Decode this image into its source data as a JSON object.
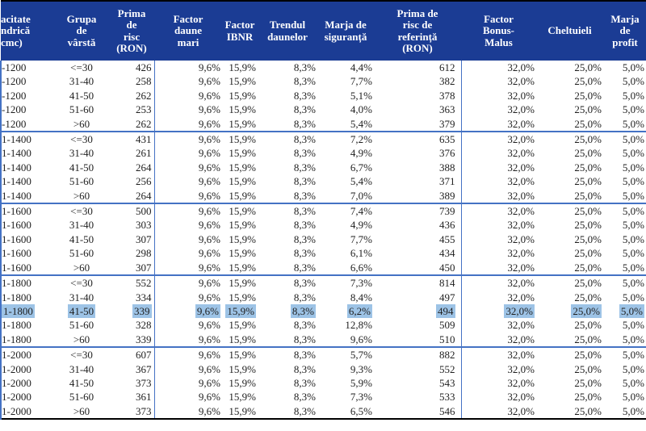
{
  "colors": {
    "header_bg": "#1b3c94",
    "header_text": "#ffffff",
    "grid_blue": "#4472c4",
    "line_black": "#000000",
    "highlight": "#9dc3e6",
    "data_text": "#1f1f1f"
  },
  "table": {
    "headers": [
      {
        "id": "capacity",
        "lines": [
          "acitate",
          "ndrică",
          "cmc)"
        ]
      },
      {
        "id": "age-group",
        "lines": [
          "Grupa",
          "de",
          "vârstă"
        ]
      },
      {
        "id": "risk-premium",
        "lines": [
          "Prima",
          "de",
          "risc",
          "(RON)"
        ]
      },
      {
        "id": "large-claims-factor",
        "lines": [
          "Factor",
          "daune",
          "mari"
        ]
      },
      {
        "id": "ibnr-factor",
        "lines": [
          "Factor",
          "IBNR"
        ]
      },
      {
        "id": "claims-trend",
        "lines": [
          "Trendul",
          "daunelor"
        ]
      },
      {
        "id": "safety-margin",
        "lines": [
          "Marja de",
          "siguranță"
        ]
      },
      {
        "id": "reference-risk-premium",
        "lines": [
          "Prima de",
          "risc de",
          "referință",
          "(RON)"
        ]
      },
      {
        "id": "bonus-malus-factor",
        "lines": [
          "Factor",
          "Bonus-",
          "Malus"
        ]
      },
      {
        "id": "expenses",
        "lines": [
          "Cheltuieli"
        ]
      },
      {
        "id": "profit-margin",
        "lines": [
          "Marja",
          "de",
          "profit"
        ]
      }
    ],
    "constants": {
      "large_claims_factor": "9,6%",
      "ibnr_factor": "15,9%",
      "claims_trend": "8,3%",
      "bonus_malus": "32,0%",
      "expenses": "25,0%",
      "profit_margin": "5,0%"
    },
    "groups": [
      {
        "capacity": "-1200",
        "rows": [
          {
            "age": "<=30",
            "risk_premium": "426",
            "safety_margin": "4,4%",
            "reference_premium": "612"
          },
          {
            "age": "31-40",
            "risk_premium": "258",
            "safety_margin": "7,7%",
            "reference_premium": "382"
          },
          {
            "age": "41-50",
            "risk_premium": "262",
            "safety_margin": "5,1%",
            "reference_premium": "378"
          },
          {
            "age": "51-60",
            "risk_premium": "253",
            "safety_margin": "4,0%",
            "reference_premium": "363"
          },
          {
            "age": ">60",
            "risk_premium": "262",
            "safety_margin": "5,4%",
            "reference_premium": "379"
          }
        ]
      },
      {
        "capacity": "1-1400",
        "rows": [
          {
            "age": "<=30",
            "risk_premium": "431",
            "safety_margin": "7,2%",
            "reference_premium": "635"
          },
          {
            "age": "31-40",
            "risk_premium": "261",
            "safety_margin": "4,9%",
            "reference_premium": "376"
          },
          {
            "age": "41-50",
            "risk_premium": "264",
            "safety_margin": "6,7%",
            "reference_premium": "388"
          },
          {
            "age": "51-60",
            "risk_premium": "256",
            "safety_margin": "5,4%",
            "reference_premium": "371"
          },
          {
            "age": ">60",
            "risk_premium": "264",
            "safety_margin": "7,0%",
            "reference_premium": "389"
          }
        ]
      },
      {
        "capacity": "1-1600",
        "rows": [
          {
            "age": "<=30",
            "risk_premium": "500",
            "safety_margin": "7,4%",
            "reference_premium": "739"
          },
          {
            "age": "31-40",
            "risk_premium": "303",
            "safety_margin": "4,9%",
            "reference_premium": "436"
          },
          {
            "age": "41-50",
            "risk_premium": "307",
            "safety_margin": "7,7%",
            "reference_premium": "455"
          },
          {
            "age": "51-60",
            "risk_premium": "298",
            "safety_margin": "6,1%",
            "reference_premium": "434"
          },
          {
            "age": ">60",
            "risk_premium": "307",
            "safety_margin": "6,6%",
            "reference_premium": "450"
          }
        ]
      },
      {
        "capacity": "1-1800",
        "rows": [
          {
            "age": "<=30",
            "risk_premium": "552",
            "safety_margin": "7,3%",
            "reference_premium": "814"
          },
          {
            "age": "31-40",
            "risk_premium": "334",
            "safety_margin": "8,4%",
            "reference_premium": "497"
          },
          {
            "age": "41-50",
            "risk_premium": "339",
            "safety_margin": "6,2%",
            "reference_premium": "494"
          },
          {
            "age": "51-60",
            "risk_premium": "328",
            "safety_margin": "12,8%",
            "reference_premium": "509"
          },
          {
            "age": ">60",
            "risk_premium": "339",
            "safety_margin": "9,6%",
            "reference_premium": "510"
          }
        ]
      },
      {
        "capacity": "1-2000",
        "rows": [
          {
            "age": "<=30",
            "risk_premium": "607",
            "safety_margin": "5,7%",
            "reference_premium": "882"
          },
          {
            "age": "31-40",
            "risk_premium": "367",
            "safety_margin": "9,3%",
            "reference_premium": "552"
          },
          {
            "age": "41-50",
            "risk_premium": "373",
            "safety_margin": "5,9%",
            "reference_premium": "543"
          },
          {
            "age": "51-60",
            "risk_premium": "361",
            "safety_margin": "7,3%",
            "reference_premium": "533"
          },
          {
            "age": ">60",
            "risk_premium": "373",
            "safety_margin": "6,5%",
            "reference_premium": "546"
          }
        ]
      }
    ],
    "selection": {
      "group_index": 3,
      "row_index": 2
    }
  }
}
